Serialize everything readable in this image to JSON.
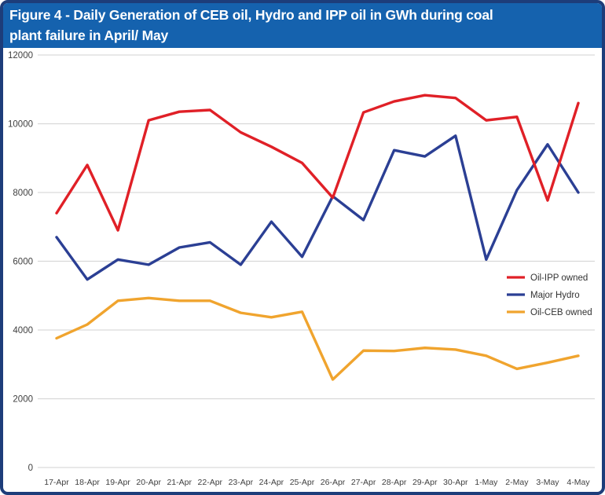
{
  "header": {
    "title_line1": "Figure 4 - Daily Generation of CEB oil, Hydro and IPP oil in GWh during coal",
    "title_line2": "plant failure in April/ May"
  },
  "chart_data": {
    "type": "line",
    "title": "Figure 4 - Daily Generation of CEB oil, Hydro and IPP oil in GWh during coal plant failure in April/ May",
    "xlabel": "",
    "ylabel": "",
    "ylim": [
      0,
      12000
    ],
    "yticks": [
      0,
      2000,
      4000,
      6000,
      8000,
      10000,
      12000
    ],
    "grid": true,
    "legend_position": "right-middle",
    "categories": [
      "17-Apr",
      "18-Apr",
      "19-Apr",
      "20-Apr",
      "21-Apr",
      "22-Apr",
      "23-Apr",
      "24-Apr",
      "25-Apr",
      "26-Apr",
      "27-Apr",
      "28-Apr",
      "29-Apr",
      "30-Apr",
      "1-May",
      "2-May",
      "3-May",
      "4-May"
    ],
    "series": [
      {
        "name": "Oil-IPP owned",
        "color": "#e02027",
        "values": [
          7400,
          8800,
          6900,
          10100,
          10350,
          10400,
          9750,
          9330,
          8860,
          7850,
          10330,
          10650,
          10830,
          10750,
          10100,
          10200,
          7770,
          10600
        ]
      },
      {
        "name": "Major Hydro",
        "color": "#2b3f94",
        "values": [
          6700,
          5470,
          6050,
          5900,
          6400,
          6550,
          5900,
          7150,
          6130,
          7890,
          7200,
          9230,
          9050,
          9650,
          6050,
          8070,
          9400,
          8000
        ]
      },
      {
        "name": "Oil-CEB owned",
        "color": "#f0a42e",
        "values": [
          3760,
          4160,
          4850,
          4930,
          4850,
          4850,
          4500,
          4370,
          4530,
          2560,
          3400,
          3390,
          3480,
          3430,
          3250,
          2870,
          3050,
          3250
        ]
      }
    ]
  },
  "colors": {
    "title_bar": "#1562ae",
    "frame_border": "#1d3d7a",
    "gridline": "#d9d9d9",
    "tick_text": "#404040",
    "legend_text": "#333333",
    "title_text": "#ffffff"
  }
}
